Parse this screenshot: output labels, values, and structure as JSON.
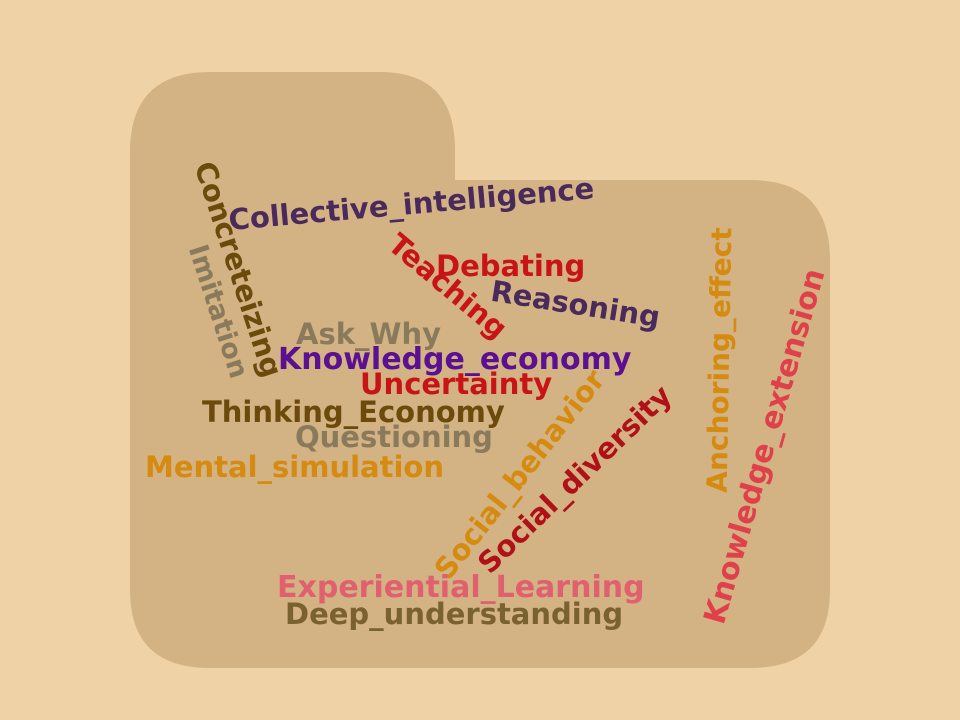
{
  "background_color": "#efd3a6",
  "folder_color": "#d3b283",
  "colors": {
    "dark_brown": "#6b4a0c",
    "olive_brown": "#7a6130",
    "gray_brown": "#8a7a5c",
    "dark_purple": "#4a2a5a",
    "purple": "#5a1090",
    "red": "#c81414",
    "dark_red": "#b01018",
    "coral": "#e0404a",
    "pink": "#e06070",
    "gold": "#d58a10"
  },
  "words": {
    "collective_intelligence": "Collective_intelligence",
    "concreteizing": "Concreteizing",
    "imitation": "Imitation",
    "teaching": "Teaching",
    "debating": "Debating",
    "reasoning": "Reasoning",
    "ask_why": "Ask_Why",
    "knowledge_economy": "Knowledge_economy",
    "uncertainty": "Uncertainty",
    "thinking_economy": "Thinking_Economy",
    "questioning": "Questioning",
    "mental_simulation": "Mental_simulation",
    "social_behavior": "Social_behavior",
    "social_diversity": "Social_diversity",
    "anchoring_effect": "Anchoring_effect",
    "knowledge_extension": "Knowledge_extension",
    "experiential_learning": "Experiential_Learning",
    "deep_understanding": "Deep_understanding"
  }
}
